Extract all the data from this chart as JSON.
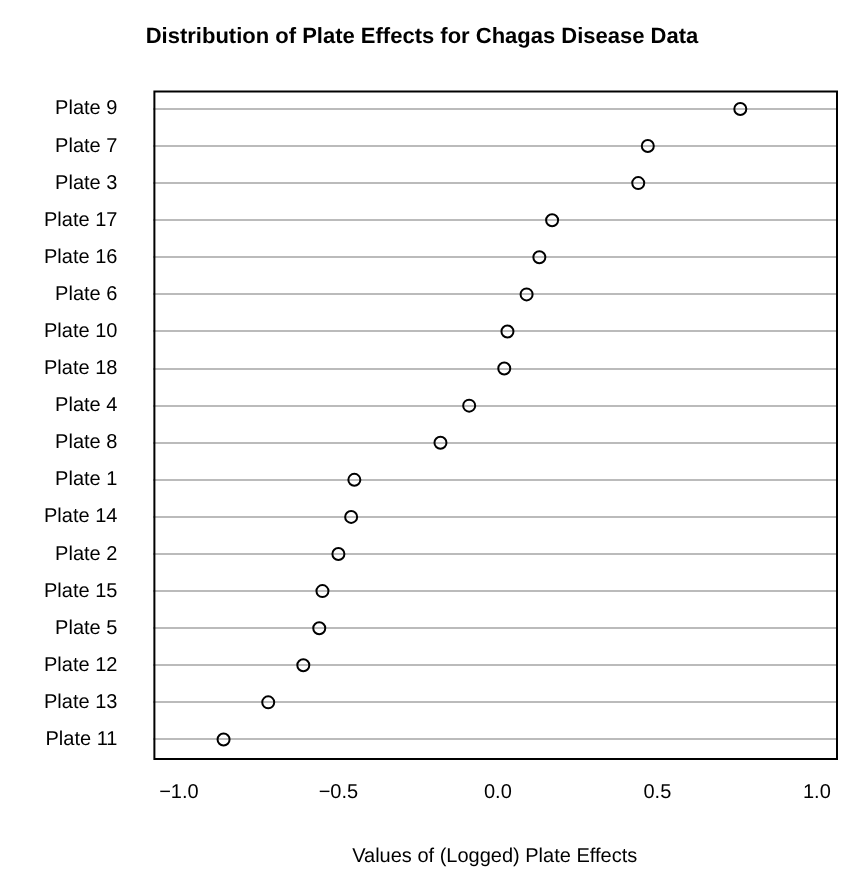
{
  "chart_data": {
    "type": "scatter",
    "orientation": "horizontal",
    "title": "Distribution of Plate Effects for Chagas Disease Data",
    "xlabel": "Values of (Logged) Plate Effects",
    "categories": [
      "Plate 9",
      "Plate 7",
      "Plate 3",
      "Plate 17",
      "Plate 16",
      "Plate 6",
      "Plate 10",
      "Plate 18",
      "Plate 4",
      "Plate 8",
      "Plate 1",
      "Plate 14",
      "Plate 2",
      "Plate 15",
      "Plate 5",
      "Plate 12",
      "Plate 13",
      "Plate 11"
    ],
    "values": [
      0.76,
      0.47,
      0.44,
      0.17,
      0.13,
      0.09,
      0.03,
      0.02,
      -0.09,
      -0.18,
      -0.45,
      -0.46,
      -0.5,
      -0.55,
      -0.56,
      -0.61,
      -0.72,
      -0.86
    ],
    "color": "#000000",
    "marker": "circle",
    "grid": "y",
    "xlim": [
      -1.08,
      1.06
    ],
    "xticks": [
      {
        "value": -1,
        "label": "−1.0"
      },
      {
        "value": -0.5,
        "label": "−0.5"
      },
      {
        "value": 0,
        "label": "0.0"
      },
      {
        "value": 0.5,
        "label": "0.5"
      },
      {
        "value": 1,
        "label": "1.0"
      }
    ]
  }
}
